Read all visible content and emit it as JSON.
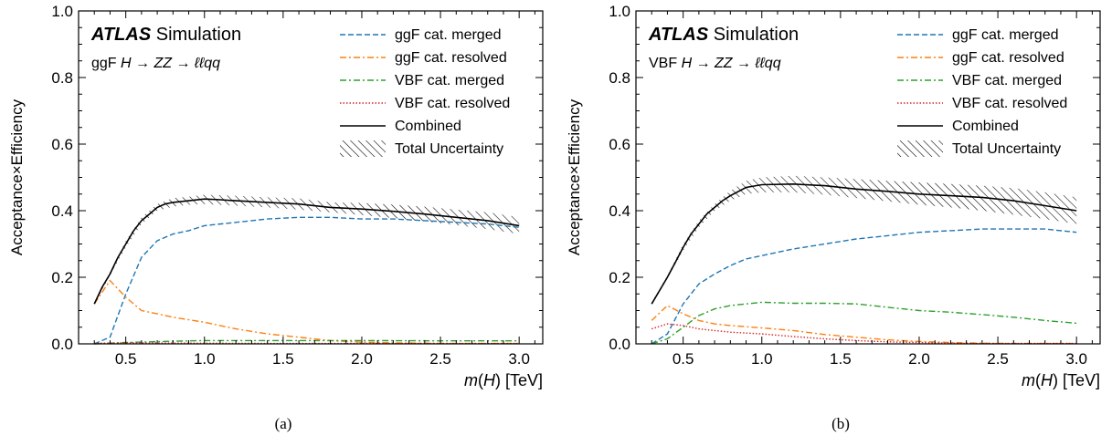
{
  "chart_data": [
    {
      "type": "line",
      "panel_label": "(a)",
      "experiment": "ATLAS",
      "experiment_tag": "Simulation",
      "process_label": {
        "prefix": "ggF",
        "formula": "H → ZZ → ℓℓqq"
      },
      "xlabel": {
        "symbol": "m",
        "arg": "H",
        "unit": "[TeV]"
      },
      "ylabel": "Acceptance×Efficiency",
      "xlim": [
        0.2,
        3.15
      ],
      "ylim": [
        0.0,
        1.0
      ],
      "xticks": [
        "0.5",
        "1.0",
        "1.5",
        "2.0",
        "2.5",
        "3.0"
      ],
      "yticks": [
        "0.0",
        "0.2",
        "0.4",
        "0.6",
        "0.8",
        "1.0"
      ],
      "legend_position": "top-right",
      "series": [
        {
          "name": "ggF cat. merged",
          "color": "#1f77b4",
          "style": "dashed",
          "x": [
            0.3,
            0.4,
            0.5,
            0.6,
            0.7,
            0.8,
            0.9,
            1.0,
            1.2,
            1.4,
            1.6,
            1.8,
            2.0,
            2.2,
            2.4,
            2.6,
            2.8,
            3.0
          ],
          "y": [
            0.0,
            0.02,
            0.15,
            0.26,
            0.31,
            0.33,
            0.34,
            0.355,
            0.365,
            0.375,
            0.38,
            0.38,
            0.375,
            0.375,
            0.37,
            0.365,
            0.36,
            0.35
          ]
        },
        {
          "name": "ggF cat. resolved",
          "color": "#ff7f0e",
          "style": "dashdot",
          "x": [
            0.3,
            0.4,
            0.5,
            0.6,
            0.7,
            0.8,
            1.0,
            1.2,
            1.4,
            1.6,
            1.8,
            2.0,
            2.2,
            2.4,
            2.6,
            2.8,
            3.0
          ],
          "y": [
            0.12,
            0.19,
            0.14,
            0.1,
            0.09,
            0.08,
            0.065,
            0.045,
            0.03,
            0.02,
            0.01,
            0.005,
            0.003,
            0.002,
            0.001,
            0.001,
            0.001
          ]
        },
        {
          "name": "VBF cat. merged",
          "color": "#2ca02c",
          "style": "dashdot",
          "x": [
            0.3,
            0.5,
            0.8,
            1.0,
            1.5,
            2.0,
            2.5,
            3.0
          ],
          "y": [
            0.0,
            0.004,
            0.008,
            0.01,
            0.01,
            0.01,
            0.009,
            0.009
          ]
        },
        {
          "name": "VBF cat. resolved",
          "color": "#d62728",
          "style": "dotted",
          "x": [
            0.3,
            0.5,
            1.0,
            1.5,
            2.0,
            2.5,
            3.0
          ],
          "y": [
            0.002,
            0.003,
            0.002,
            0.001,
            0.001,
            0.001,
            0.001
          ]
        },
        {
          "name": "Combined",
          "color": "#000000",
          "style": "solid",
          "x": [
            0.3,
            0.35,
            0.4,
            0.45,
            0.5,
            0.55,
            0.6,
            0.65,
            0.7,
            0.75,
            0.8,
            0.9,
            1.0,
            1.1,
            1.2,
            1.4,
            1.6,
            1.8,
            2.0,
            2.2,
            2.4,
            2.6,
            2.8,
            3.0
          ],
          "y": [
            0.12,
            0.17,
            0.21,
            0.26,
            0.3,
            0.34,
            0.37,
            0.39,
            0.41,
            0.42,
            0.425,
            0.43,
            0.435,
            0.433,
            0.43,
            0.425,
            0.42,
            0.41,
            0.405,
            0.398,
            0.39,
            0.38,
            0.37,
            0.355
          ]
        }
      ],
      "uncertainty": {
        "name": "Total Uncertainty",
        "x": [
          0.3,
          0.4,
          0.5,
          0.6,
          0.7,
          0.8,
          0.9,
          1.0,
          1.2,
          1.4,
          1.6,
          1.8,
          2.0,
          2.2,
          2.4,
          2.6,
          2.8,
          3.0
        ],
        "low": [
          0.115,
          0.205,
          0.29,
          0.36,
          0.4,
          0.412,
          0.418,
          0.42,
          0.415,
          0.41,
          0.403,
          0.395,
          0.387,
          0.378,
          0.368,
          0.357,
          0.345,
          0.33
        ],
        "high": [
          0.125,
          0.215,
          0.31,
          0.38,
          0.42,
          0.438,
          0.442,
          0.448,
          0.445,
          0.44,
          0.437,
          0.425,
          0.423,
          0.418,
          0.412,
          0.403,
          0.395,
          0.38
        ]
      }
    },
    {
      "type": "line",
      "panel_label": "(b)",
      "experiment": "ATLAS",
      "experiment_tag": "Simulation",
      "process_label": {
        "prefix": "VBF",
        "formula": "H → ZZ → ℓℓqq"
      },
      "xlabel": {
        "symbol": "m",
        "arg": "H",
        "unit": "[TeV]"
      },
      "ylabel": "Acceptance×Efficiency",
      "xlim": [
        0.2,
        3.15
      ],
      "ylim": [
        0.0,
        1.0
      ],
      "xticks": [
        "0.5",
        "1.0",
        "1.5",
        "2.0",
        "2.5",
        "3.0"
      ],
      "yticks": [
        "0.0",
        "0.2",
        "0.4",
        "0.6",
        "0.8",
        "1.0"
      ],
      "legend_position": "top-right",
      "series": [
        {
          "name": "ggF cat. merged",
          "color": "#1f77b4",
          "style": "dashed",
          "x": [
            0.3,
            0.4,
            0.5,
            0.6,
            0.7,
            0.8,
            0.9,
            1.0,
            1.2,
            1.4,
            1.6,
            1.8,
            2.0,
            2.2,
            2.4,
            2.6,
            2.8,
            3.0
          ],
          "y": [
            0.0,
            0.03,
            0.12,
            0.18,
            0.21,
            0.235,
            0.255,
            0.265,
            0.285,
            0.3,
            0.315,
            0.325,
            0.335,
            0.34,
            0.345,
            0.345,
            0.345,
            0.335
          ]
        },
        {
          "name": "ggF cat. resolved",
          "color": "#ff7f0e",
          "style": "dashdot",
          "x": [
            0.3,
            0.4,
            0.5,
            0.6,
            0.7,
            0.8,
            1.0,
            1.2,
            1.4,
            1.6,
            1.8,
            2.0,
            2.2,
            2.4,
            2.6,
            2.8,
            3.0
          ],
          "y": [
            0.07,
            0.115,
            0.09,
            0.07,
            0.06,
            0.055,
            0.048,
            0.04,
            0.028,
            0.02,
            0.012,
            0.007,
            0.004,
            0.002,
            0.001,
            0.001,
            0.001
          ]
        },
        {
          "name": "VBF cat. merged",
          "color": "#2ca02c",
          "style": "dashdot",
          "x": [
            0.3,
            0.4,
            0.5,
            0.6,
            0.7,
            0.8,
            0.9,
            1.0,
            1.2,
            1.4,
            1.6,
            1.8,
            2.0,
            2.2,
            2.4,
            2.6,
            2.8,
            3.0
          ],
          "y": [
            0.0,
            0.015,
            0.05,
            0.085,
            0.105,
            0.115,
            0.12,
            0.125,
            0.122,
            0.122,
            0.12,
            0.11,
            0.1,
            0.095,
            0.088,
            0.08,
            0.07,
            0.062
          ]
        },
        {
          "name": "VBF cat. resolved",
          "color": "#d62728",
          "style": "dotted",
          "x": [
            0.3,
            0.4,
            0.5,
            0.6,
            0.7,
            0.8,
            1.0,
            1.2,
            1.4,
            1.6,
            1.8,
            2.0,
            2.2,
            2.4,
            2.6,
            2.8,
            3.0
          ],
          "y": [
            0.045,
            0.06,
            0.055,
            0.045,
            0.04,
            0.035,
            0.03,
            0.022,
            0.015,
            0.01,
            0.006,
            0.004,
            0.002,
            0.001,
            0.001,
            0.001,
            0.001
          ]
        },
        {
          "name": "Combined",
          "color": "#000000",
          "style": "solid",
          "x": [
            0.3,
            0.35,
            0.4,
            0.45,
            0.5,
            0.55,
            0.6,
            0.65,
            0.7,
            0.75,
            0.8,
            0.9,
            1.0,
            1.2,
            1.4,
            1.6,
            1.8,
            2.0,
            2.2,
            2.4,
            2.6,
            2.8,
            3.0
          ],
          "y": [
            0.12,
            0.16,
            0.2,
            0.245,
            0.29,
            0.33,
            0.36,
            0.39,
            0.41,
            0.43,
            0.445,
            0.47,
            0.478,
            0.48,
            0.475,
            0.465,
            0.458,
            0.45,
            0.445,
            0.44,
            0.43,
            0.415,
            0.4
          ]
        }
      ],
      "uncertainty": {
        "name": "Total Uncertainty",
        "x": [
          0.3,
          0.4,
          0.5,
          0.6,
          0.7,
          0.8,
          0.9,
          1.0,
          1.2,
          1.4,
          1.6,
          1.8,
          2.0,
          2.2,
          2.4,
          2.6,
          2.8,
          3.0
        ],
        "low": [
          0.115,
          0.195,
          0.28,
          0.35,
          0.4,
          0.43,
          0.45,
          0.455,
          0.455,
          0.448,
          0.438,
          0.428,
          0.418,
          0.41,
          0.4,
          0.388,
          0.375,
          0.36
        ],
        "high": [
          0.125,
          0.205,
          0.3,
          0.37,
          0.42,
          0.46,
          0.49,
          0.5,
          0.505,
          0.5,
          0.495,
          0.49,
          0.485,
          0.48,
          0.475,
          0.468,
          0.455,
          0.44
        ]
      }
    }
  ]
}
